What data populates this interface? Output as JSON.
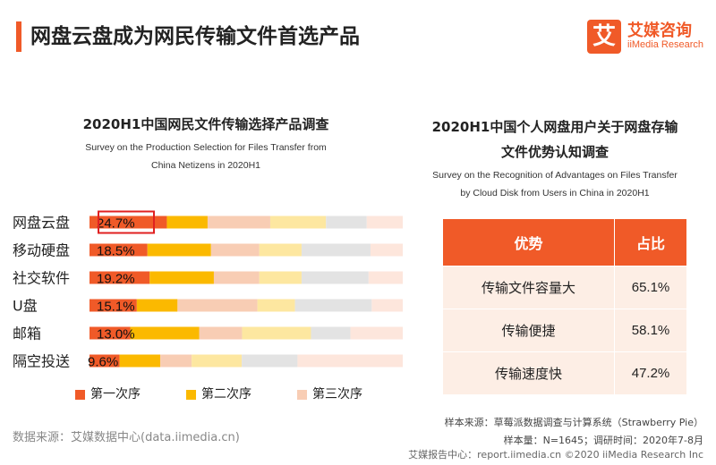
{
  "header": {
    "title": "网盘云盘成为网民传输文件首选产品",
    "logo_mark": "艾",
    "logo_cn": "艾媒咨询",
    "logo_en": "iiMedia Research"
  },
  "left_chart": {
    "title_cn": "2020H1中国网民文件传输选择产品调查",
    "title_en_line1": "Survey on the Production Selection for Files Transfer from",
    "title_en_line2": "China Netizens in 2020H1"
  },
  "chart_data": {
    "type": "bar",
    "orientation": "horizontal",
    "stacked": true,
    "categories": [
      "网盘云盘",
      "移动硬盘",
      "社交软件",
      "U盘",
      "邮箱",
      "隔空投送"
    ],
    "series": [
      {
        "name": "第一次序",
        "color": "#f05a28",
        "values": [
          24.7,
          18.5,
          19.2,
          15.1,
          13.0,
          9.6
        ]
      },
      {
        "name": "第二次序",
        "color": "#fbb900",
        "values": [
          13.0,
          20.3,
          20.5,
          13.0,
          22.0,
          13.0
        ]
      },
      {
        "name": "第三次序",
        "color": "#f8cdb4",
        "values": [
          20.0,
          15.4,
          14.5,
          25.5,
          13.7,
          10.0
        ]
      },
      {
        "name": "",
        "color": "#fde7a0",
        "values": [
          17.8,
          13.5,
          13.5,
          12.0,
          22.0,
          16.0
        ]
      },
      {
        "name": "",
        "color": "#e3e3e3",
        "values": [
          13.0,
          22.0,
          21.4,
          24.5,
          12.6,
          17.8
        ]
      },
      {
        "name": "",
        "color": "#fde6dc",
        "values": [
          11.5,
          10.3,
          10.9,
          9.9,
          16.7,
          33.6
        ]
      }
    ],
    "labels": [
      "24.7%",
      "18.5%",
      "19.2%",
      "15.1%",
      "13.0%",
      "9.6%"
    ],
    "highlight_index": 0,
    "xlim": [
      0,
      100
    ],
    "legend_position": "bottom"
  },
  "legend": [
    "第一次序",
    "第二次序",
    "第三次序"
  ],
  "source_left": "数据来源：艾媒数据中心(data.iimedia.cn)",
  "right_table": {
    "title_cn_line1": "2020H1中国个人网盘用户关于网盘存输",
    "title_cn_line2": "文件优势认知调查",
    "title_en_line1": "Survey on the Recognition of Advantages on Files Transfer",
    "title_en_line2": "by Cloud Disk from Users in China in 2020H1",
    "headers": [
      "优势",
      "占比"
    ],
    "rows": [
      [
        "传输文件容量大",
        "65.1%"
      ],
      [
        "传输便捷",
        "58.1%"
      ],
      [
        "传输速度快",
        "47.2%"
      ]
    ]
  },
  "sample_source": "样本来源：草莓派数据调查与计算系统（Strawberry Pie）",
  "sample_size": "样本量：N=1645；调研时间：2020年7-8月",
  "footer": "艾媒报告中心：report.iimedia.cn ©2020  iiMedia Research  Inc"
}
